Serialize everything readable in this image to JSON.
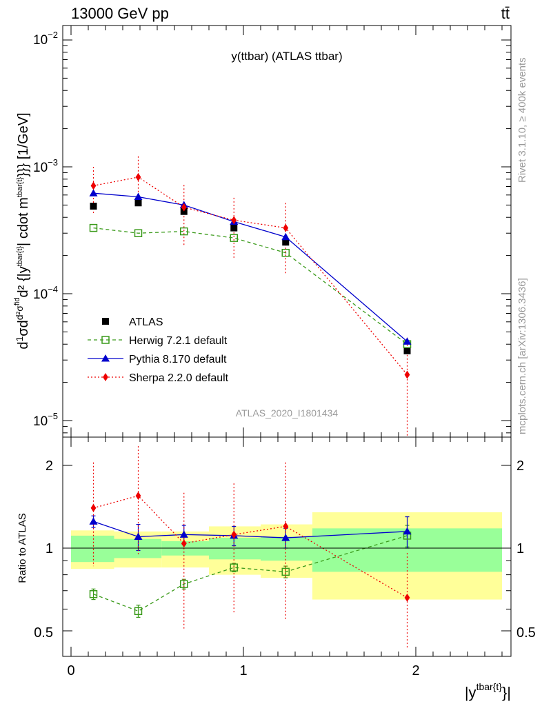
{
  "header": {
    "energy_label": "13000 GeV pp",
    "process_label": "tt̄"
  },
  "side_labels": {
    "rivet": "Rivet 3.1.10, ≥ 400k events",
    "mcplots": "mcplots.cern.ch [arXiv:1306.3436]"
  },
  "chart_data": {
    "type": "scatter",
    "title": "y(ttbar) (ATLAS ttbar)",
    "analysis_label": "ATLAS_2020_I1801434",
    "xlabel": "|y^{tbar{t}}|",
    "ylabel": "d1/σ d^2σ^{fid}/d^2{|y^{tbar{t}}|} cdot m^{tbar{t}}}} [1/GeV]",
    "ratio_ylabel": "Ratio to ATLAS",
    "xlim": [
      -0.06,
      2.6
    ],
    "ylim": [
      7e-06,
      0.0125
    ],
    "yscale": "log",
    "ratio_ylim": [
      0.42,
      2.35
    ],
    "ratio_yscale": "log",
    "legend_position": "bottom-left",
    "x_ticks": [
      "0",
      "1",
      "2"
    ],
    "y_ticks": [
      "10^-5",
      "10^-4",
      "10^-3",
      "10^-2"
    ],
    "ratio_ticks": [
      "0.5",
      "1",
      "2"
    ],
    "bins": [
      [
        0,
        0.25
      ],
      [
        0.25,
        0.525
      ],
      [
        0.525,
        0.8
      ],
      [
        0.8,
        1.1
      ],
      [
        1.1,
        1.4
      ],
      [
        1.4,
        2.5
      ]
    ],
    "x": [
      0.13,
      0.39,
      0.655,
      0.945,
      1.245,
      1.95
    ],
    "series": [
      {
        "name": "ATLAS",
        "marker": "square-filled",
        "color": "#000000",
        "values": [
          0.00049,
          0.00052,
          0.000445,
          0.00033,
          0.000255,
          3.55e-05
        ],
        "band_stat": [
          0.11,
          0.08,
          0.06,
          0.09,
          0.1,
          0.18
        ],
        "band_total": [
          0.16,
          0.15,
          0.15,
          0.2,
          0.22,
          0.35
        ]
      },
      {
        "name": "Herwig 7.2.1 default",
        "marker": "square-open",
        "line": "dashed",
        "color": "#3a9a1a",
        "values": [
          0.00033,
          0.0003,
          0.00031,
          0.000275,
          0.00021,
          4e-05
        ],
        "ratio": [
          0.68,
          0.59,
          0.74,
          0.85,
          0.82,
          1.11
        ],
        "ratio_err": [
          0.03,
          0.03,
          0.03,
          0.03,
          0.04,
          0.1
        ]
      },
      {
        "name": "Pythia 8.170 default",
        "marker": "triangle-filled",
        "line": "solid",
        "color": "#0000cc",
        "values": [
          0.00062,
          0.00058,
          0.0005,
          0.00037,
          0.00028,
          4.2e-05
        ],
        "ratio": [
          1.25,
          1.1,
          1.12,
          1.11,
          1.09,
          1.15
        ],
        "ratio_err": [
          0.06,
          0.12,
          0.09,
          0.09,
          0.09,
          0.15
        ]
      },
      {
        "name": "Sherpa 2.2.0 default",
        "marker": "diamond-filled",
        "line": "dotted",
        "color": "#ee0000",
        "values": [
          0.00071,
          0.00083,
          0.00048,
          0.00038,
          0.00033,
          2.3e-05
        ],
        "errors": [
          [
            0.00029,
            0.00029
          ],
          [
            0.00035,
            0.00038
          ],
          [
            0.00024,
            0.00024
          ],
          [
            0.00019,
            0.00019
          ],
          [
            0.00019,
            0.00019
          ],
          [
            2.2e-05,
            2.2e-05
          ]
        ],
        "ratio": [
          1.4,
          1.55,
          1.04,
          1.12,
          1.2,
          0.66
        ],
        "ratio_err": [
          [
            0.54,
            0.65
          ],
          [
            0.6,
            0.8
          ],
          [
            0.53,
            0.55
          ],
          [
            0.54,
            0.6
          ],
          [
            0.65,
            0.85
          ],
          [
            0.35,
            0.3
          ]
        ]
      }
    ]
  }
}
